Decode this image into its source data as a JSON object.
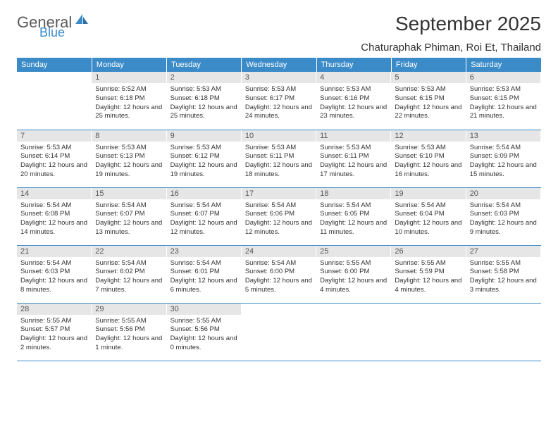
{
  "brand": {
    "main": "General",
    "sub": "Blue"
  },
  "title": "September 2025",
  "location": "Chaturaphak Phiman, Roi Et, Thailand",
  "colors": {
    "header_bg": "#3b8bc9",
    "header_fg": "#ffffff",
    "daynum_bg": "#e6e6e6",
    "border": "#3b8bc9",
    "brand_sub": "#3b8bc9",
    "brand_main": "#5a5a5a"
  },
  "font": {
    "title_size": 28,
    "location_size": 15,
    "header_size": 11,
    "cell_size": 9.5
  },
  "daysOfWeek": [
    "Sunday",
    "Monday",
    "Tuesday",
    "Wednesday",
    "Thursday",
    "Friday",
    "Saturday"
  ],
  "weeks": [
    [
      {
        "num": "",
        "lines": []
      },
      {
        "num": "1",
        "lines": [
          "Sunrise: 5:52 AM",
          "Sunset: 6:18 PM",
          "Daylight: 12 hours and 25 minutes."
        ]
      },
      {
        "num": "2",
        "lines": [
          "Sunrise: 5:53 AM",
          "Sunset: 6:18 PM",
          "Daylight: 12 hours and 25 minutes."
        ]
      },
      {
        "num": "3",
        "lines": [
          "Sunrise: 5:53 AM",
          "Sunset: 6:17 PM",
          "Daylight: 12 hours and 24 minutes."
        ]
      },
      {
        "num": "4",
        "lines": [
          "Sunrise: 5:53 AM",
          "Sunset: 6:16 PM",
          "Daylight: 12 hours and 23 minutes."
        ]
      },
      {
        "num": "5",
        "lines": [
          "Sunrise: 5:53 AM",
          "Sunset: 6:15 PM",
          "Daylight: 12 hours and 22 minutes."
        ]
      },
      {
        "num": "6",
        "lines": [
          "Sunrise: 5:53 AM",
          "Sunset: 6:15 PM",
          "Daylight: 12 hours and 21 minutes."
        ]
      }
    ],
    [
      {
        "num": "7",
        "lines": [
          "Sunrise: 5:53 AM",
          "Sunset: 6:14 PM",
          "Daylight: 12 hours and 20 minutes."
        ]
      },
      {
        "num": "8",
        "lines": [
          "Sunrise: 5:53 AM",
          "Sunset: 6:13 PM",
          "Daylight: 12 hours and 19 minutes."
        ]
      },
      {
        "num": "9",
        "lines": [
          "Sunrise: 5:53 AM",
          "Sunset: 6:12 PM",
          "Daylight: 12 hours and 19 minutes."
        ]
      },
      {
        "num": "10",
        "lines": [
          "Sunrise: 5:53 AM",
          "Sunset: 6:11 PM",
          "Daylight: 12 hours and 18 minutes."
        ]
      },
      {
        "num": "11",
        "lines": [
          "Sunrise: 5:53 AM",
          "Sunset: 6:11 PM",
          "Daylight: 12 hours and 17 minutes."
        ]
      },
      {
        "num": "12",
        "lines": [
          "Sunrise: 5:53 AM",
          "Sunset: 6:10 PM",
          "Daylight: 12 hours and 16 minutes."
        ]
      },
      {
        "num": "13",
        "lines": [
          "Sunrise: 5:54 AM",
          "Sunset: 6:09 PM",
          "Daylight: 12 hours and 15 minutes."
        ]
      }
    ],
    [
      {
        "num": "14",
        "lines": [
          "Sunrise: 5:54 AM",
          "Sunset: 6:08 PM",
          "Daylight: 12 hours and 14 minutes."
        ]
      },
      {
        "num": "15",
        "lines": [
          "Sunrise: 5:54 AM",
          "Sunset: 6:07 PM",
          "Daylight: 12 hours and 13 minutes."
        ]
      },
      {
        "num": "16",
        "lines": [
          "Sunrise: 5:54 AM",
          "Sunset: 6:07 PM",
          "Daylight: 12 hours and 12 minutes."
        ]
      },
      {
        "num": "17",
        "lines": [
          "Sunrise: 5:54 AM",
          "Sunset: 6:06 PM",
          "Daylight: 12 hours and 12 minutes."
        ]
      },
      {
        "num": "18",
        "lines": [
          "Sunrise: 5:54 AM",
          "Sunset: 6:05 PM",
          "Daylight: 12 hours and 11 minutes."
        ]
      },
      {
        "num": "19",
        "lines": [
          "Sunrise: 5:54 AM",
          "Sunset: 6:04 PM",
          "Daylight: 12 hours and 10 minutes."
        ]
      },
      {
        "num": "20",
        "lines": [
          "Sunrise: 5:54 AM",
          "Sunset: 6:03 PM",
          "Daylight: 12 hours and 9 minutes."
        ]
      }
    ],
    [
      {
        "num": "21",
        "lines": [
          "Sunrise: 5:54 AM",
          "Sunset: 6:03 PM",
          "Daylight: 12 hours and 8 minutes."
        ]
      },
      {
        "num": "22",
        "lines": [
          "Sunrise: 5:54 AM",
          "Sunset: 6:02 PM",
          "Daylight: 12 hours and 7 minutes."
        ]
      },
      {
        "num": "23",
        "lines": [
          "Sunrise: 5:54 AM",
          "Sunset: 6:01 PM",
          "Daylight: 12 hours and 6 minutes."
        ]
      },
      {
        "num": "24",
        "lines": [
          "Sunrise: 5:54 AM",
          "Sunset: 6:00 PM",
          "Daylight: 12 hours and 5 minutes."
        ]
      },
      {
        "num": "25",
        "lines": [
          "Sunrise: 5:55 AM",
          "Sunset: 6:00 PM",
          "Daylight: 12 hours and 4 minutes."
        ]
      },
      {
        "num": "26",
        "lines": [
          "Sunrise: 5:55 AM",
          "Sunset: 5:59 PM",
          "Daylight: 12 hours and 4 minutes."
        ]
      },
      {
        "num": "27",
        "lines": [
          "Sunrise: 5:55 AM",
          "Sunset: 5:58 PM",
          "Daylight: 12 hours and 3 minutes."
        ]
      }
    ],
    [
      {
        "num": "28",
        "lines": [
          "Sunrise: 5:55 AM",
          "Sunset: 5:57 PM",
          "Daylight: 12 hours and 2 minutes."
        ]
      },
      {
        "num": "29",
        "lines": [
          "Sunrise: 5:55 AM",
          "Sunset: 5:56 PM",
          "Daylight: 12 hours and 1 minute."
        ]
      },
      {
        "num": "30",
        "lines": [
          "Sunrise: 5:55 AM",
          "Sunset: 5:56 PM",
          "Daylight: 12 hours and 0 minutes."
        ]
      },
      {
        "num": "",
        "lines": []
      },
      {
        "num": "",
        "lines": []
      },
      {
        "num": "",
        "lines": []
      },
      {
        "num": "",
        "lines": []
      }
    ]
  ]
}
